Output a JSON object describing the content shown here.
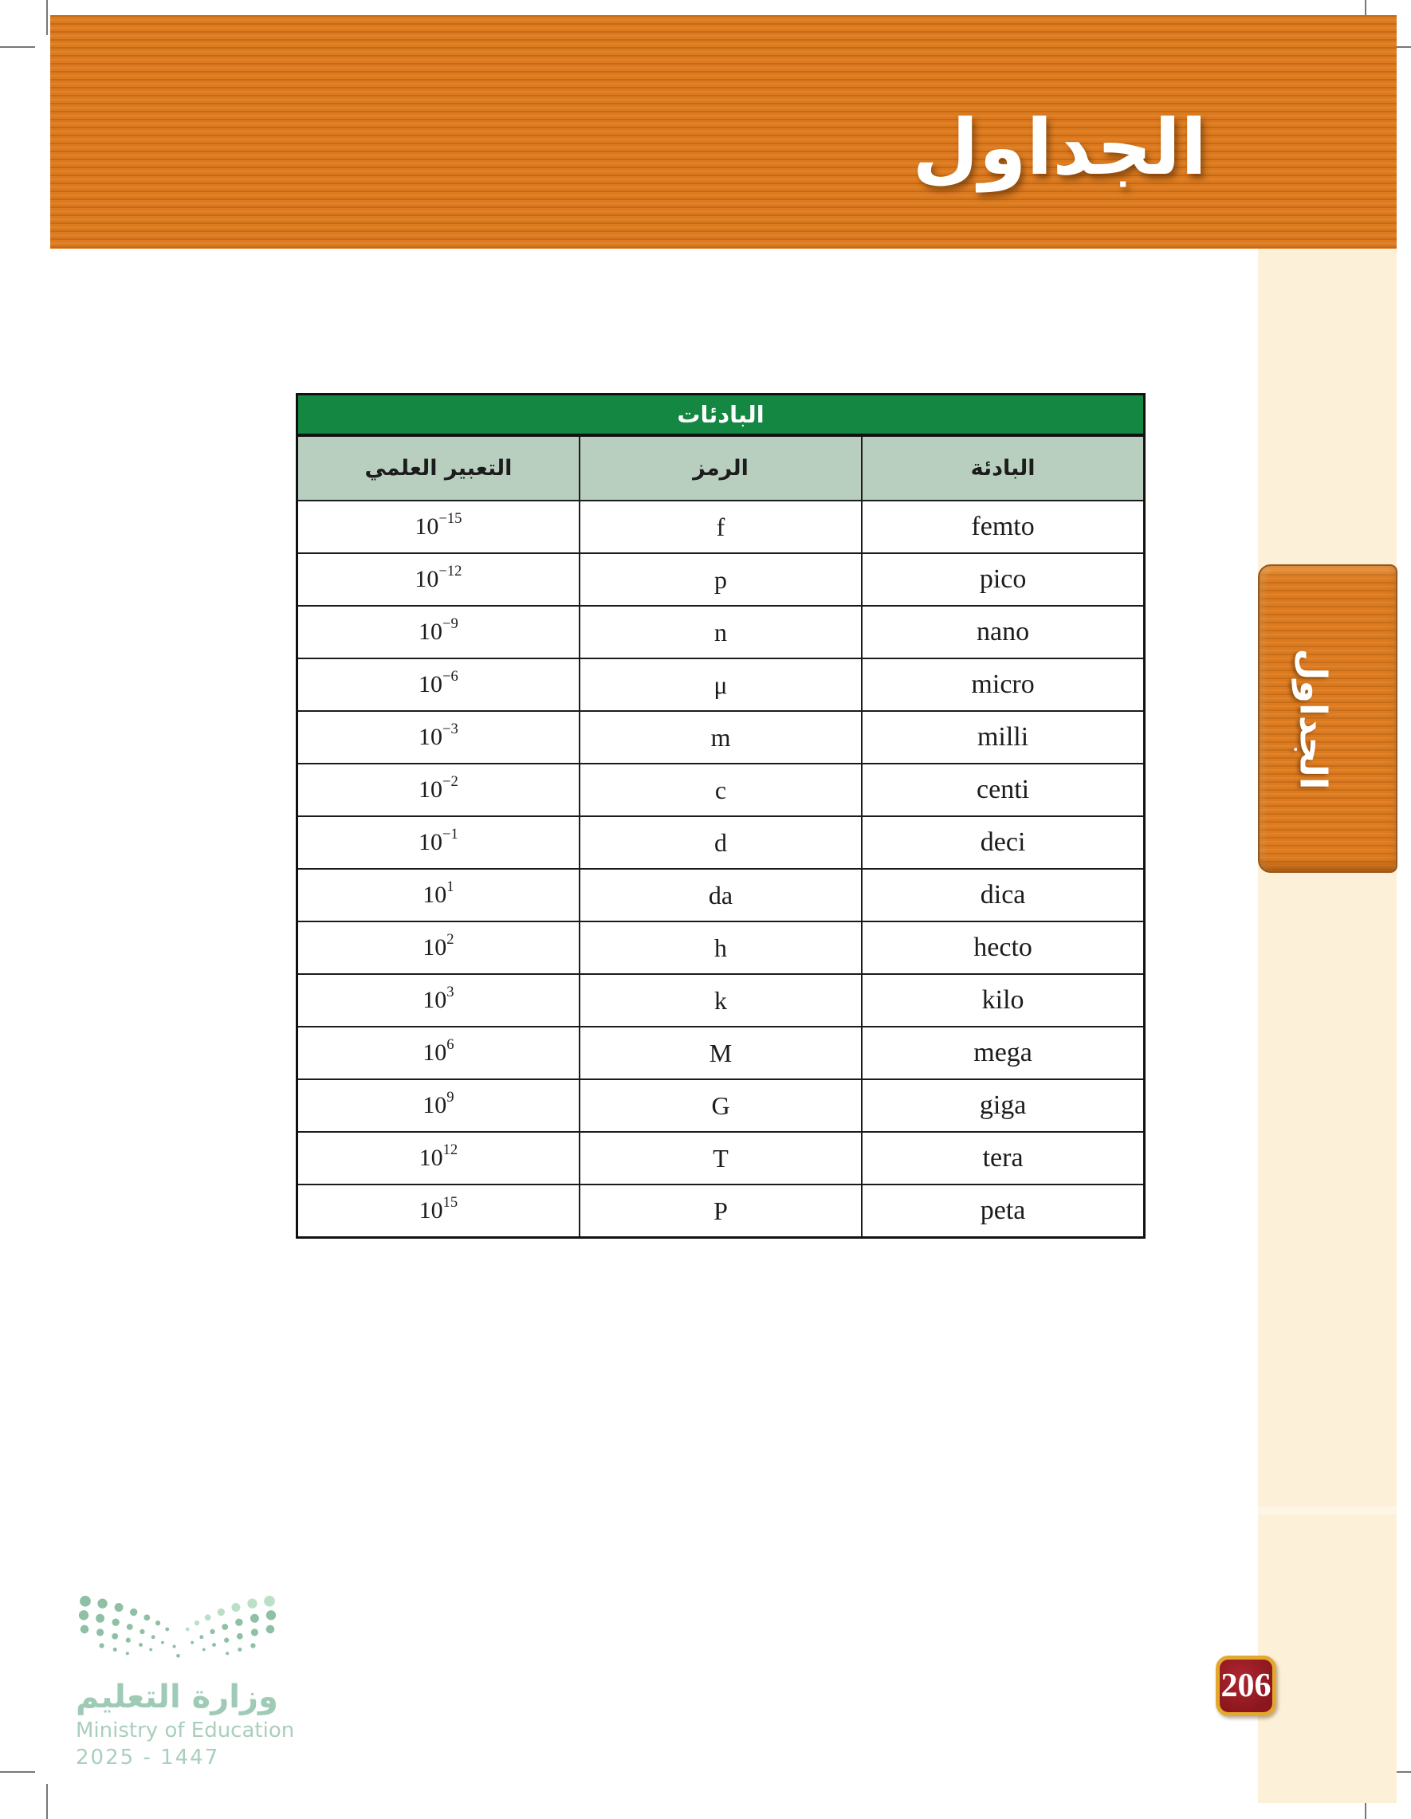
{
  "banner": {
    "title": "الجداول"
  },
  "side_tab": {
    "label": "الجداول"
  },
  "table": {
    "caption": "البادئات",
    "columns": [
      "البادئة",
      "الرمز",
      "التعبير العلمي"
    ],
    "rows": [
      {
        "prefix": "femto",
        "symbol": "f",
        "base": "10",
        "exp": "−15"
      },
      {
        "prefix": "pico",
        "symbol": "p",
        "base": "10",
        "exp": "−12"
      },
      {
        "prefix": "nano",
        "symbol": "n",
        "base": "10",
        "exp": "−9"
      },
      {
        "prefix": "micro",
        "symbol": "μ",
        "base": "10",
        "exp": "−6"
      },
      {
        "prefix": "milli",
        "symbol": "m",
        "base": "10",
        "exp": "−3"
      },
      {
        "prefix": "centi",
        "symbol": "c",
        "base": "10",
        "exp": "−2"
      },
      {
        "prefix": "deci",
        "symbol": "d",
        "base": "10",
        "exp": "−1"
      },
      {
        "prefix": "dica",
        "symbol": "da",
        "base": "10",
        "exp": "1"
      },
      {
        "prefix": "hecto",
        "symbol": "h",
        "base": "10",
        "exp": "2"
      },
      {
        "prefix": "kilo",
        "symbol": "k",
        "base": "10",
        "exp": "3"
      },
      {
        "prefix": "mega",
        "symbol": "M",
        "base": "10",
        "exp": "6"
      },
      {
        "prefix": "giga",
        "symbol": "G",
        "base": "10",
        "exp": "9"
      },
      {
        "prefix": "tera",
        "symbol": "T",
        "base": "10",
        "exp": "12"
      },
      {
        "prefix": "peta",
        "symbol": "P",
        "base": "10",
        "exp": "15"
      }
    ]
  },
  "footer_logo": {
    "arabic_name": "وزارة التعليم",
    "english_name": "Ministry of Education",
    "years": "2025 - 1447"
  },
  "page_number": "206",
  "colors": {
    "banner_orange": "#dd7a1e",
    "table_caption_green": "#148742",
    "table_header_sage": "#b8cfc0",
    "sidebar_cream": "#fdf0d8",
    "badge_red": "#8c161d",
    "badge_gold": "#e3a92f",
    "logo_green_dark": "#8fc0a6",
    "logo_green_light": "#bcdfc8"
  }
}
